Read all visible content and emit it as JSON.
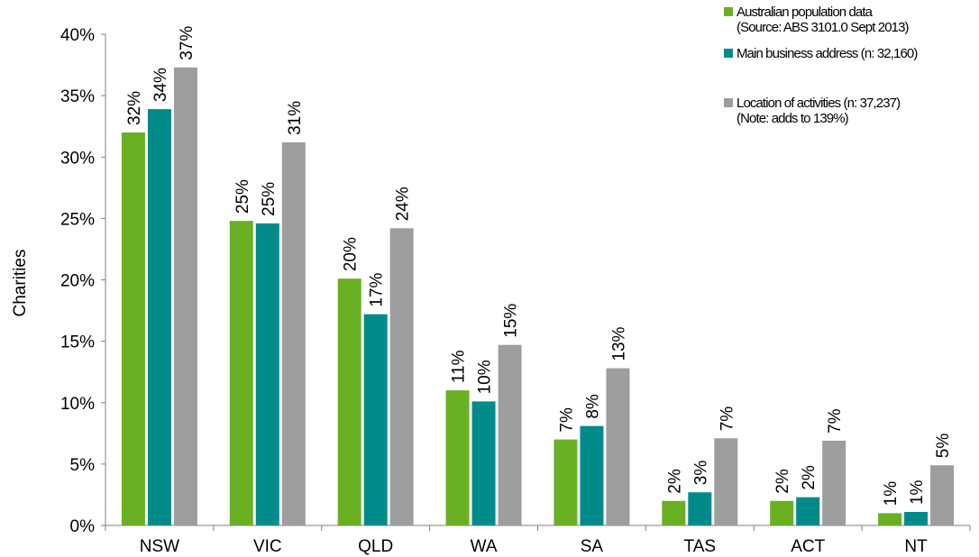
{
  "chart_data": {
    "type": "bar",
    "categories": [
      "NSW",
      "VIC",
      "QLD",
      "WA",
      "SA",
      "TAS",
      "ACT",
      "NT"
    ],
    "series": [
      {
        "name": "Australian population data (Source: ABS 3101.0 Sept 2013)",
        "legend_lines": [
          "Australian population data",
          "(Source: ABS 3101.0 Sept 2013)"
        ],
        "color": "#6ab023",
        "values": [
          32.0,
          24.8,
          20.1,
          11.0,
          7.0,
          2.0,
          2.0,
          1.0
        ],
        "labels": [
          "32%",
          "25%",
          "20%",
          "11%",
          "7%",
          "2%",
          "2%",
          "1%"
        ]
      },
      {
        "name": "Main business address (n: 32,160)",
        "legend_lines": [
          "Main business address (n: 32,160)"
        ],
        "color": "#008b8b",
        "values": [
          33.9,
          24.6,
          17.2,
          10.1,
          8.1,
          2.7,
          2.3,
          1.1
        ],
        "labels": [
          "34%",
          "25%",
          "17%",
          "10%",
          "8%",
          "3%",
          "2%",
          "1%"
        ]
      },
      {
        "name": "Location of activities (n: 37,237) (Note: adds to 139%)",
        "legend_lines": [
          "Location of activities (n: 37,237)",
          "(Note: adds to 139%)"
        ],
        "color": "#9d9d9f",
        "values": [
          37.3,
          31.2,
          24.2,
          14.7,
          12.8,
          7.1,
          6.9,
          4.9
        ],
        "labels": [
          "37%",
          "31%",
          "24%",
          "15%",
          "13%",
          "7%",
          "7%",
          "5%"
        ]
      }
    ],
    "ylabel": "Charities",
    "xlabel": "",
    "ylim": [
      0,
      40
    ],
    "yticks": [
      0,
      5,
      10,
      15,
      20,
      25,
      30,
      35,
      40
    ],
    "ytick_labels": [
      "0%",
      "5%",
      "10%",
      "15%",
      "20%",
      "25%",
      "30%",
      "35%",
      "40%"
    ],
    "grid": false,
    "legend_position": "top-right"
  }
}
